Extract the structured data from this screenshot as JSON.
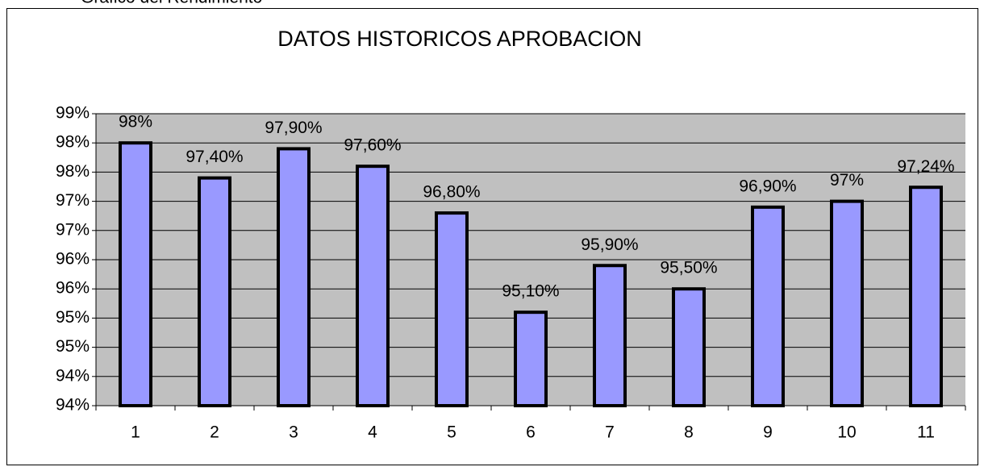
{
  "caption": "Gráfico del Rendimiento",
  "chart_data": {
    "type": "bar",
    "title": "DATOS HISTORICOS APROBACION",
    "categories": [
      "1",
      "2",
      "3",
      "4",
      "5",
      "6",
      "7",
      "8",
      "9",
      "10",
      "11"
    ],
    "values": [
      98,
      97.4,
      97.9,
      97.6,
      96.8,
      95.1,
      95.9,
      95.5,
      96.9,
      97,
      97.24
    ],
    "value_labels": [
      "98%",
      "97,40%",
      "97,90%",
      "97,60%",
      "96,80%",
      "95,10%",
      "95,90%",
      "95,50%",
      "96,90%",
      "97%",
      "97,24%"
    ],
    "color": "#9999ff",
    "ylim": [
      93.5,
      98.5
    ],
    "yticks": [
      {
        "value": 93.5,
        "label": "94%"
      },
      {
        "value": 94,
        "label": "94%"
      },
      {
        "value": 94.5,
        "label": "95%"
      },
      {
        "value": 95,
        "label": "95%"
      },
      {
        "value": 95.5,
        "label": "96%"
      },
      {
        "value": 96,
        "label": "96%"
      },
      {
        "value": 96.5,
        "label": "97%"
      },
      {
        "value": 97,
        "label": "97%"
      },
      {
        "value": 97.5,
        "label": "98%"
      },
      {
        "value": 98,
        "label": "98%"
      },
      {
        "value": 98.5,
        "label": "99%"
      }
    ],
    "grid": true
  }
}
